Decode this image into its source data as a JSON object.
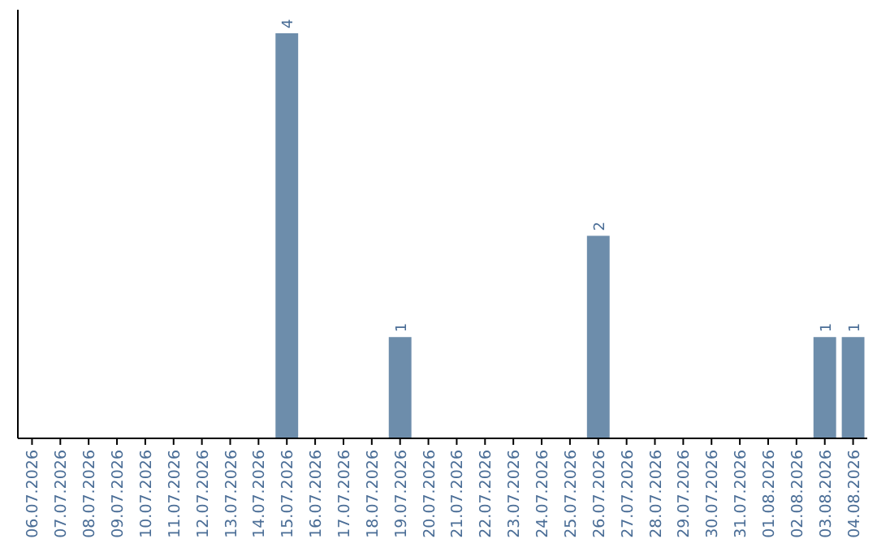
{
  "chart_data": {
    "type": "bar",
    "categories": [
      "06.07.2026",
      "07.07.2026",
      "08.07.2026",
      "09.07.2026",
      "10.07.2026",
      "11.07.2026",
      "12.07.2026",
      "13.07.2026",
      "14.07.2026",
      "15.07.2026",
      "16.07.2026",
      "17.07.2026",
      "18.07.2026",
      "19.07.2026",
      "20.07.2026",
      "21.07.2026",
      "22.07.2026",
      "23.07.2026",
      "24.07.2026",
      "25.07.2026",
      "26.07.2026",
      "27.07.2026",
      "28.07.2026",
      "29.07.2026",
      "30.07.2026",
      "31.07.2026",
      "01.08.2026",
      "02.08.2026",
      "03.08.2026",
      "04.08.2026"
    ],
    "values": [
      0,
      0,
      0,
      0,
      0,
      0,
      0,
      0,
      0,
      4,
      0,
      0,
      0,
      1,
      0,
      0,
      0,
      0,
      0,
      0,
      2,
      0,
      0,
      0,
      0,
      0,
      0,
      0,
      1,
      1
    ],
    "value_labels": [
      null,
      null,
      null,
      null,
      null,
      null,
      null,
      null,
      null,
      "4",
      null,
      null,
      null,
      "1",
      null,
      null,
      null,
      null,
      null,
      null,
      "2",
      null,
      null,
      null,
      null,
      null,
      null,
      null,
      "1",
      "1"
    ],
    "color": "#6d8dab",
    "relative": false
  }
}
